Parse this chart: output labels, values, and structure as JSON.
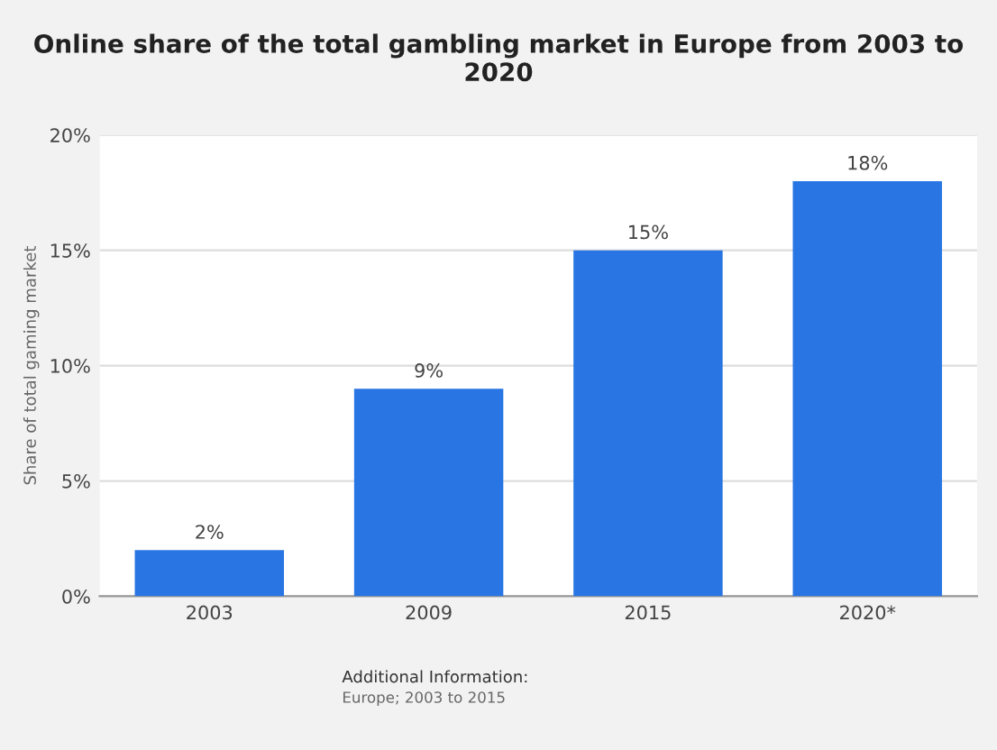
{
  "chart_data": {
    "type": "bar",
    "title": "Online share of the total gambling market in Europe from 2003 to 2020",
    "ylabel": "Share of total gaming market",
    "categories": [
      "2003",
      "2009",
      "2015",
      "2020*"
    ],
    "values": [
      2,
      9,
      15,
      18
    ],
    "value_labels": [
      "2%",
      "9%",
      "15%",
      "18%"
    ],
    "color": "#2875e3",
    "ylim": [
      0,
      20
    ],
    "yticks": [
      {
        "value": 0,
        "label": "0%"
      },
      {
        "value": 5,
        "label": "5%"
      },
      {
        "value": 10,
        "label": "10%"
      },
      {
        "value": 15,
        "label": "15%"
      },
      {
        "value": 20,
        "label": "20%"
      }
    ],
    "grid": "y",
    "annotations": [
      "Additional Information:",
      "Europe; 2003 to 2015"
    ]
  }
}
